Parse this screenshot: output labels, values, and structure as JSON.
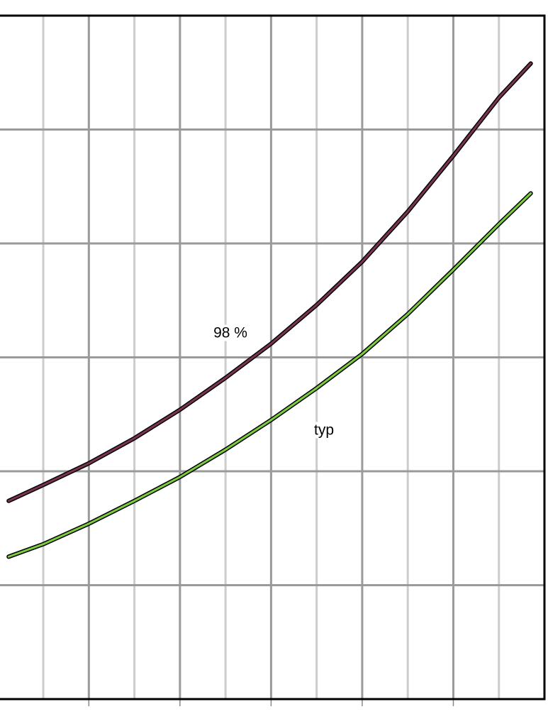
{
  "chart_data": {
    "type": "line",
    "x": [
      -0.76,
      0,
      1,
      2,
      3,
      4,
      5,
      6,
      7,
      8,
      9,
      10,
      10.7
    ],
    "series": [
      {
        "name": "98 %",
        "color": "#7a3352",
        "values": [
          1.74,
          1.88,
          2.07,
          2.29,
          2.54,
          2.82,
          3.12,
          3.46,
          3.84,
          4.28,
          4.77,
          5.28,
          5.58
        ]
      },
      {
        "name": "typ",
        "color": "#7ccc3e",
        "values": [
          1.25,
          1.36,
          1.54,
          1.74,
          1.95,
          2.19,
          2.45,
          2.73,
          3.03,
          3.38,
          3.77,
          4.17,
          4.44
        ]
      }
    ],
    "xlim": [
      -0.95,
      11
    ],
    "ylim": [
      0,
      6
    ],
    "xticks": [
      0,
      1,
      2,
      3,
      4,
      5,
      6,
      7,
      8,
      9,
      10
    ],
    "yticks": [
      0,
      1,
      2,
      3,
      4,
      5,
      6
    ],
    "grid": true
  }
}
